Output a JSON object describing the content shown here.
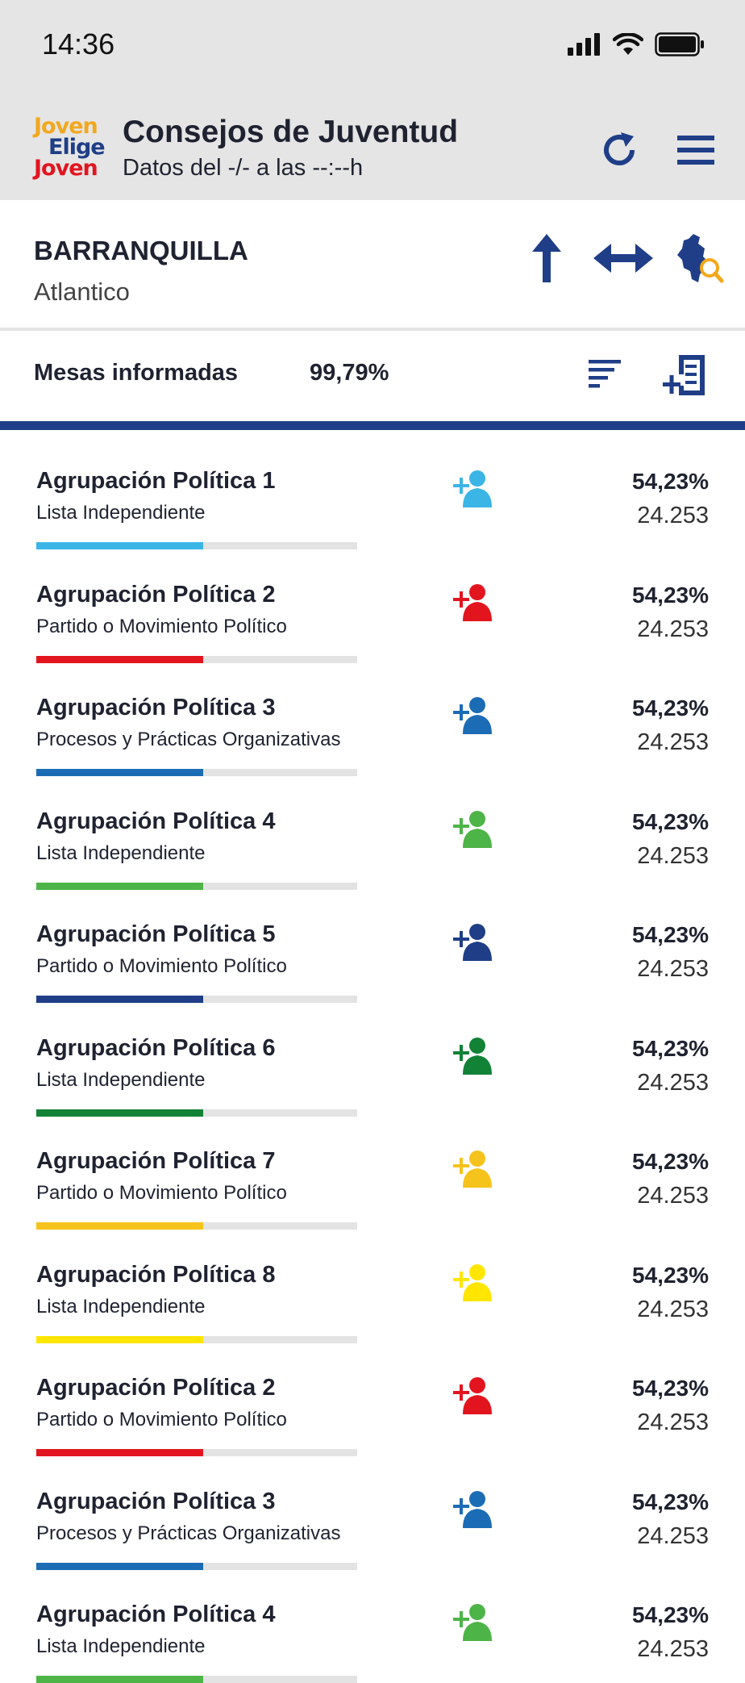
{
  "status": {
    "time": "14:36"
  },
  "app": {
    "logo_lines": [
      "Joven",
      "Elige",
      "Joven"
    ],
    "title": "Consejos de Juventud",
    "subtitle": "Datos del -/- a las --:--h",
    "refresh_icon": "refresh-icon",
    "menu_icon": "hamburger-menu-icon"
  },
  "location": {
    "city": "BARRANQUILLA",
    "department": "Atlantico",
    "icons": [
      "arrow-up-icon",
      "arrow-left-right-icon",
      "map-search-icon"
    ]
  },
  "summary": {
    "label": "Mesas informadas",
    "value": "99,79%",
    "icons": [
      "sort-icon",
      "add-list-icon"
    ]
  },
  "colors": {
    "brand_blue": "#1f3e87",
    "text_dark": "#1f2230",
    "header_bg": "#e5e5e5"
  },
  "results": [
    {
      "name": "Agrupación Política 1",
      "type": "Lista Independiente",
      "pct": "54,23%",
      "votes": "24.253",
      "color": "#3bb5e6",
      "bar": 0.52
    },
    {
      "name": "Agrupación Política 2",
      "type": "Partido o Movimiento Político",
      "pct": "54,23%",
      "votes": "24.253",
      "color": "#e2151f",
      "bar": 0.52
    },
    {
      "name": "Agrupación Política 3",
      "type": "Procesos y Prácticas Organizativas",
      "pct": "54,23%",
      "votes": "24.253",
      "color": "#1c6cb5",
      "bar": 0.52
    },
    {
      "name": "Agrupación Política 4",
      "type": "Lista Independiente",
      "pct": "54,23%",
      "votes": "24.253",
      "color": "#4db447",
      "bar": 0.52
    },
    {
      "name": "Agrupación Política 5",
      "type": "Partido o Movimiento Político",
      "pct": "54,23%",
      "votes": "24.253",
      "color": "#1f3e87",
      "bar": 0.52
    },
    {
      "name": "Agrupación Política 6",
      "type": "Lista Independiente",
      "pct": "54,23%",
      "votes": "24.253",
      "color": "#118236",
      "bar": 0.52
    },
    {
      "name": "Agrupación Política 7",
      "type": "Partido o Movimiento Político",
      "pct": "54,23%",
      "votes": "24.253",
      "color": "#f6c31c",
      "bar": 0.52
    },
    {
      "name": "Agrupación Política 8",
      "type": "Lista Independiente",
      "pct": "54,23%",
      "votes": "24.253",
      "color": "#ffe600",
      "bar": 0.52
    },
    {
      "name": "Agrupación Política 2",
      "type": "Partido o Movimiento Político",
      "pct": "54,23%",
      "votes": "24.253",
      "color": "#e2151f",
      "bar": 0.52
    },
    {
      "name": "Agrupación Política 3",
      "type": "Procesos y Prácticas Organizativas",
      "pct": "54,23%",
      "votes": "24.253",
      "color": "#1c6cb5",
      "bar": 0.52
    },
    {
      "name": "Agrupación Política 4",
      "type": "Lista Independiente",
      "pct": "54,23%",
      "votes": "24.253",
      "color": "#4db447",
      "bar": 0.52
    }
  ]
}
